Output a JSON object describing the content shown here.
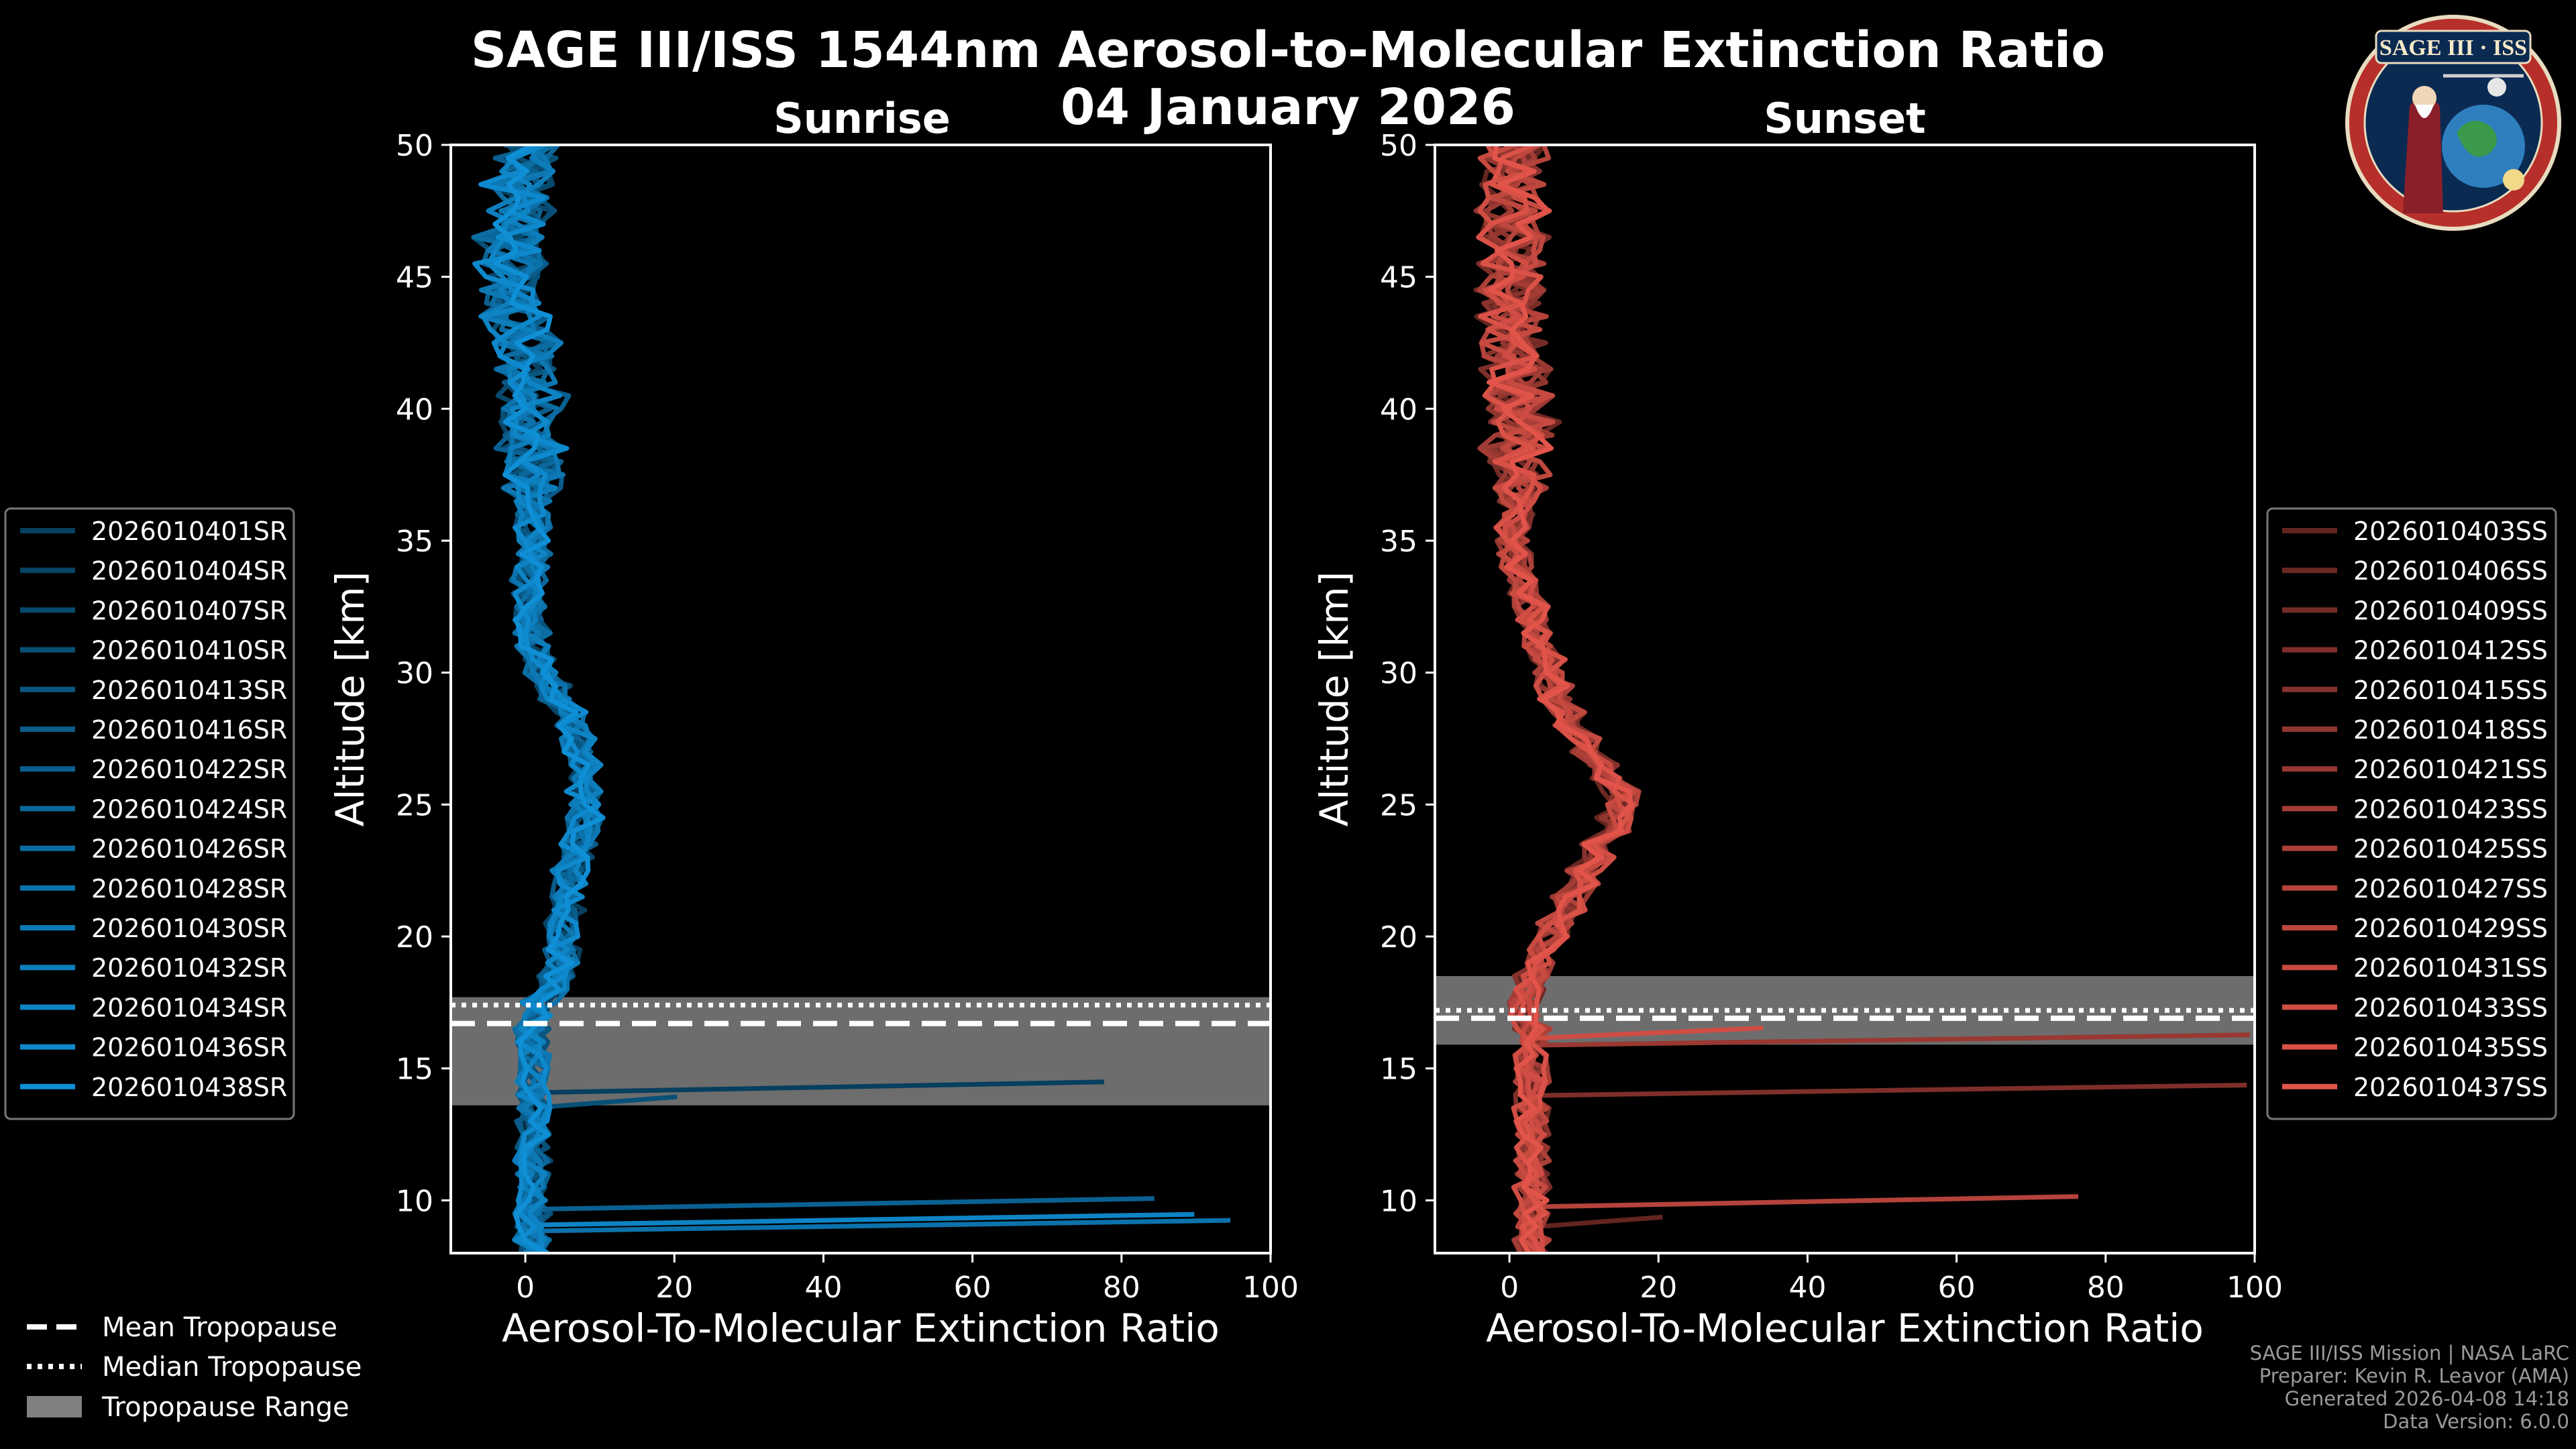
{
  "title": "SAGE III/ISS 1544nm Aerosol-to-Molecular Extinction Ratio",
  "date": "04 January 2026",
  "logo_text": "SAGE III · ISS",
  "credits": {
    "line1": "SAGE III/ISS Mission | NASA LaRC",
    "line2": "Preparer: Kevin R. Leavor (AMA)",
    "line3": "Generated 2026-04-08 14:18",
    "line4": "Data Version: 6.0.0"
  },
  "tropopause_legend": {
    "mean": "Mean Tropopause",
    "median": "Median Tropopause",
    "range": "Tropopause Range"
  },
  "colors": {
    "sunrise": "#0f8fd6",
    "sunset": "#e2544a",
    "range": "#808080"
  },
  "chart_data": [
    {
      "type": "line",
      "title": "Sunrise",
      "xlabel": "Aerosol-To-Molecular Extinction Ratio",
      "ylabel": "Altitude [km]",
      "xlim": [
        -10,
        100
      ],
      "ylim": [
        8,
        50
      ],
      "xticks": [
        0,
        20,
        40,
        60,
        80,
        100
      ],
      "yticks": [
        10,
        15,
        20,
        25,
        30,
        35,
        40,
        45,
        50
      ],
      "tropopause": {
        "mean": 16.7,
        "median": 17.4,
        "range": [
          13.6,
          17.7
        ]
      },
      "legend": [
        "2026010401SR",
        "2026010404SR",
        "2026010407SR",
        "2026010410SR",
        "2026010413SR",
        "2026010416SR",
        "2026010422SR",
        "2026010424SR",
        "2026010426SR",
        "2026010428SR",
        "2026010430SR",
        "2026010432SR",
        "2026010434SR",
        "2026010436SR",
        "2026010438SR"
      ],
      "profile_altitudes": [
        8,
        9,
        10,
        11,
        12,
        13,
        14,
        15,
        16,
        17,
        18,
        19,
        20,
        21,
        22,
        23,
        24,
        25,
        26,
        27,
        28,
        29,
        30,
        31,
        32,
        33,
        34,
        35,
        36,
        37,
        38,
        39,
        40,
        41,
        42,
        43,
        44,
        45,
        46,
        47,
        48,
        49,
        50
      ],
      "profile_mean": [
        1,
        1,
        1,
        1,
        1,
        1,
        1,
        1,
        1,
        2,
        4,
        5,
        5,
        6,
        6,
        7,
        8,
        8,
        8,
        7,
        6,
        4,
        2,
        1,
        0.5,
        0.5,
        1,
        1,
        1,
        1,
        1,
        1,
        1,
        1,
        0.5,
        -1,
        -2,
        -2,
        -2,
        -1,
        -1,
        0,
        1
      ]
    },
    {
      "type": "line",
      "title": "Sunset",
      "xlabel": "Aerosol-To-Molecular Extinction Ratio",
      "ylabel": "Altitude [km]",
      "xlim": [
        -10,
        100
      ],
      "ylim": [
        8,
        50
      ],
      "xticks": [
        0,
        20,
        40,
        60,
        80,
        100
      ],
      "yticks": [
        10,
        15,
        20,
        25,
        30,
        35,
        40,
        45,
        50
      ],
      "tropopause": {
        "mean": 16.9,
        "median": 17.2,
        "range": [
          15.9,
          18.5
        ]
      },
      "legend": [
        "2026010403SS",
        "2026010406SS",
        "2026010409SS",
        "2026010412SS",
        "2026010415SS",
        "2026010418SS",
        "2026010421SS",
        "2026010423SS",
        "2026010425SS",
        "2026010427SS",
        "2026010429SS",
        "2026010431SS",
        "2026010433SS",
        "2026010435SS",
        "2026010437SS"
      ],
      "profile_altitudes": [
        8,
        9,
        10,
        11,
        12,
        13,
        14,
        15,
        16,
        17,
        18,
        19,
        20,
        21,
        22,
        23,
        24,
        25,
        26,
        27,
        28,
        29,
        30,
        31,
        32,
        33,
        34,
        35,
        36,
        37,
        38,
        39,
        40,
        41,
        42,
        43,
        44,
        45,
        46,
        47,
        48,
        49,
        50
      ],
      "profile_mean": [
        3,
        3,
        3,
        3,
        3,
        3,
        3,
        3,
        3,
        2,
        3,
        4,
        6,
        8,
        10,
        12,
        14,
        15,
        13,
        10,
        8,
        6,
        5,
        4,
        3,
        2,
        1,
        0.5,
        1,
        1,
        1,
        2,
        1,
        1,
        0.5,
        0.5,
        0.5,
        0.5,
        0.5,
        0.5,
        0.5,
        0.5,
        1
      ]
    }
  ]
}
